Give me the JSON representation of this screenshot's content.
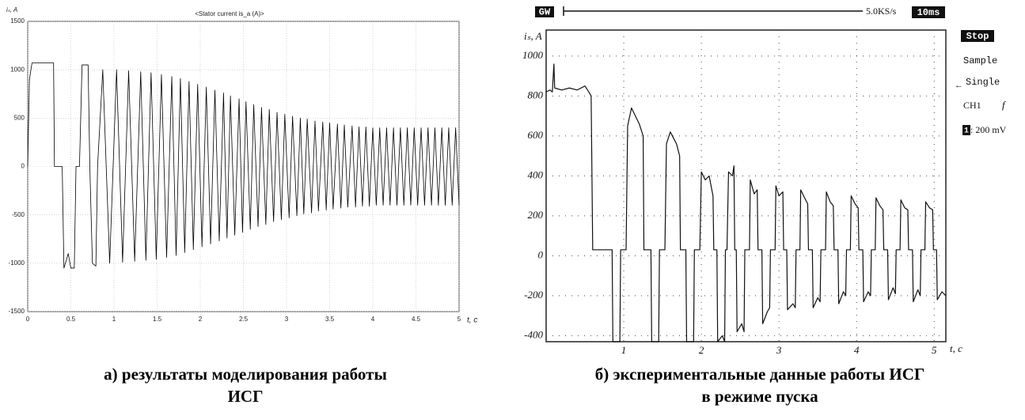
{
  "chart_data": [
    {
      "type": "line",
      "title": "<Stator current is_a (A)>",
      "y_label": "iₛ, A",
      "x_label": "t, c",
      "xlim": [
        0,
        5
      ],
      "ylim": [
        -1500,
        1500
      ],
      "xticks": [
        0,
        0.5,
        1,
        1.5,
        2,
        2.5,
        3,
        3.5,
        4,
        4.5,
        5
      ],
      "yticks": [
        -1500,
        -1000,
        -500,
        0,
        500,
        1000,
        1500
      ],
      "grid": true,
      "color": "#000000",
      "x": [
        0,
        0.02,
        0.05,
        0.3,
        0.31,
        0.4,
        0.42,
        0.47,
        0.5,
        0.54,
        0.56,
        0.6,
        0.63,
        0.7,
        0.72,
        0.75,
        0.79,
        0.81,
        0.87,
        0.95,
        1.03,
        1.1,
        1.17,
        1.24,
        1.31,
        1.37,
        1.43,
        1.49,
        1.55,
        1.61,
        1.67,
        1.72,
        1.77,
        1.82,
        1.87,
        1.92,
        1.97,
        2.02,
        2.07,
        2.12,
        2.17,
        2.22,
        2.27,
        2.31,
        2.35,
        2.4,
        2.45,
        2.49,
        2.53,
        2.58,
        2.62,
        2.67,
        2.71,
        2.76,
        2.8,
        2.85,
        2.89,
        2.94,
        2.98,
        3.03,
        3.07,
        3.12,
        3.16,
        3.2,
        3.24,
        3.29,
        3.33,
        3.37,
        3.42,
        3.46,
        3.5,
        3.54,
        3.59,
        3.63,
        3.67,
        3.71,
        3.76,
        3.8,
        3.84,
        3.88,
        3.92,
        3.96,
        4.0,
        4.04,
        4.08,
        4.12,
        4.16,
        4.2,
        4.24,
        4.28,
        4.32,
        4.36,
        4.4,
        4.44,
        4.48,
        4.52,
        4.56,
        4.6,
        4.64,
        4.68,
        4.72,
        4.76,
        4.8,
        4.84,
        4.88,
        4.92,
        4.96,
        5.0
      ],
      "values": [
        0,
        900,
        1070,
        1070,
        0,
        0,
        -1050,
        -900,
        -1050,
        -1050,
        0,
        0,
        1050,
        1050,
        0,
        -1000,
        -1030,
        0,
        1000,
        -1000,
        1000,
        -990,
        990,
        -980,
        980,
        -970,
        970,
        -960,
        950,
        -940,
        930,
        -920,
        910,
        -890,
        880,
        -860,
        850,
        -830,
        820,
        -800,
        790,
        -770,
        760,
        -740,
        730,
        -710,
        700,
        -680,
        670,
        -650,
        640,
        -620,
        610,
        -600,
        590,
        -570,
        560,
        -550,
        540,
        -530,
        520,
        -510,
        500,
        -490,
        490,
        -480,
        470,
        -460,
        460,
        -450,
        450,
        -440,
        440,
        -430,
        430,
        -420,
        420,
        -420,
        410,
        -410,
        410,
        -410,
        400,
        -400,
        400,
        -400,
        400,
        -400,
        400,
        -400,
        400,
        -400,
        400,
        -400,
        400,
        -400,
        400,
        -400,
        400,
        -400,
        400,
        -400,
        400,
        -400,
        400,
        -400,
        400,
        -400
      ],
      "caption": [
        "а) результаты моделирования работы",
        "ИСГ"
      ]
    },
    {
      "type": "line",
      "y_label": "iₛ, A",
      "x_label": "t, c",
      "xlim": [
        0,
        5.15
      ],
      "ylim": [
        -430,
        1130
      ],
      "xticks": [
        1,
        2,
        3,
        4,
        5
      ],
      "yticks": [
        -400,
        -200,
        0,
        200,
        400,
        600,
        800,
        1000
      ],
      "grid": true,
      "color": "#111111",
      "scope_labels": {
        "brand": "GW",
        "sample_rate": "5.0KS/s",
        "timebase": "10ms",
        "state": "Stop",
        "mode": "Sample",
        "trigger": "Single",
        "channel": "CH1",
        "slope": "f",
        "channel_number": "1",
        "scale": ": 200 mV"
      },
      "x": [
        0,
        0.05,
        0.08,
        0.1,
        0.11,
        0.2,
        0.3,
        0.4,
        0.5,
        0.55,
        0.58,
        0.6,
        0.85,
        0.86,
        0.95,
        0.96,
        1.03,
        1.05,
        1.1,
        1.15,
        1.2,
        1.25,
        1.26,
        1.35,
        1.36,
        1.45,
        1.46,
        1.53,
        1.55,
        1.6,
        1.68,
        1.72,
        1.73,
        1.8,
        1.81,
        1.9,
        1.91,
        1.98,
        2.0,
        2.05,
        2.1,
        2.15,
        2.16,
        2.2,
        2.21,
        2.27,
        2.3,
        2.31,
        2.33,
        2.35,
        2.4,
        2.42,
        2.43,
        2.45,
        2.46,
        2.52,
        2.55,
        2.56,
        2.62,
        2.63,
        2.68,
        2.72,
        2.73,
        2.78,
        2.79,
        2.85,
        2.88,
        2.89,
        2.95,
        2.96,
        3.0,
        3.05,
        3.06,
        3.1,
        3.11,
        3.18,
        3.21,
        3.22,
        3.27,
        3.28,
        3.33,
        3.37,
        3.38,
        3.43,
        3.44,
        3.5,
        3.53,
        3.54,
        3.6,
        3.61,
        3.66,
        3.7,
        3.71,
        3.76,
        3.77,
        3.83,
        3.86,
        3.87,
        3.92,
        3.93,
        3.98,
        4.02,
        4.03,
        4.08,
        4.09,
        4.15,
        4.18,
        4.19,
        4.24,
        4.25,
        4.3,
        4.34,
        4.35,
        4.4,
        4.41,
        4.47,
        4.5,
        4.51,
        4.56,
        4.57,
        4.62,
        4.66,
        4.67,
        4.72,
        4.73,
        4.79,
        4.82,
        4.83,
        4.88,
        4.89,
        4.94,
        4.98,
        4.99,
        5.03,
        5.04,
        5.1,
        5.15
      ],
      "values": [
        820,
        830,
        820,
        960,
        840,
        830,
        840,
        830,
        850,
        820,
        800,
        30,
        30,
        -430,
        -430,
        30,
        30,
        650,
        740,
        700,
        660,
        600,
        30,
        30,
        -430,
        -430,
        30,
        30,
        560,
        620,
        560,
        500,
        30,
        30,
        -430,
        -430,
        30,
        30,
        420,
        380,
        400,
        300,
        30,
        30,
        -430,
        -400,
        -430,
        30,
        30,
        420,
        400,
        450,
        30,
        30,
        -380,
        -340,
        -380,
        30,
        30,
        380,
        310,
        330,
        30,
        30,
        -340,
        -280,
        -260,
        30,
        30,
        350,
        300,
        320,
        30,
        30,
        -270,
        -240,
        -260,
        30,
        30,
        330,
        290,
        260,
        30,
        30,
        -260,
        -210,
        -230,
        30,
        30,
        320,
        270,
        250,
        30,
        30,
        -240,
        -180,
        -200,
        30,
        30,
        300,
        260,
        240,
        30,
        30,
        -230,
        -180,
        -200,
        30,
        30,
        290,
        250,
        230,
        30,
        30,
        -220,
        -160,
        -190,
        30,
        30,
        280,
        240,
        230,
        30,
        30,
        -230,
        -170,
        -200,
        30,
        30,
        270,
        240,
        230,
        30,
        30,
        -220,
        -180,
        -200
      ],
      "caption": [
        "б) экспериментальные данные работы ИСГ",
        "в режиме пуска"
      ]
    }
  ]
}
